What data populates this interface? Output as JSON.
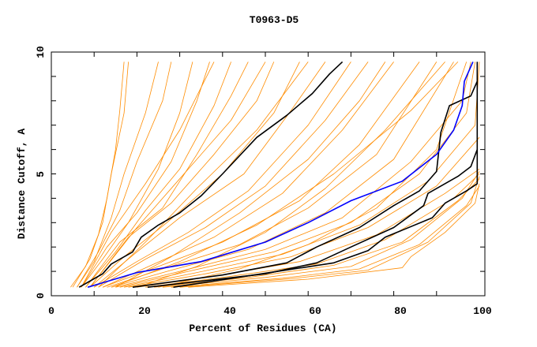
{
  "chart_data": {
    "type": "line",
    "title": "T0963-D5",
    "xlabel": "Percent of Residues (CA)",
    "ylabel": "Distance Cutoff, A",
    "xlim": [
      0,
      100
    ],
    "ylim": [
      0,
      10
    ],
    "xticks": [
      "0",
      "20",
      "40",
      "60",
      "80",
      "100"
    ],
    "yticks": [
      "0",
      "5",
      "10"
    ],
    "grid": false,
    "colors": {
      "models": "#ff8c00",
      "highlight": "#000000",
      "reference": "#0000ff"
    },
    "orange_series": [
      [
        [
          4.5,
          0.35
        ],
        [
          8,
          1.2
        ],
        [
          11,
          2.5
        ],
        [
          13,
          4
        ],
        [
          15,
          6
        ],
        [
          16,
          7.6
        ],
        [
          17,
          9.6
        ]
      ],
      [
        [
          5,
          0.35
        ],
        [
          9,
          1.5
        ],
        [
          12,
          3
        ],
        [
          14,
          5
        ],
        [
          17,
          7.5
        ],
        [
          18,
          9.6
        ]
      ],
      [
        [
          6,
          0.35
        ],
        [
          10,
          1.4
        ],
        [
          14,
          3.2
        ],
        [
          17,
          5
        ],
        [
          22,
          7.5
        ],
        [
          25,
          9.6
        ]
      ],
      [
        [
          6,
          0.35
        ],
        [
          11,
          1.8
        ],
        [
          16,
          3.5
        ],
        [
          20,
          5.5
        ],
        [
          26,
          8
        ],
        [
          28,
          9.6
        ]
      ],
      [
        [
          7,
          0.35
        ],
        [
          12,
          1.5
        ],
        [
          18,
          3
        ],
        [
          25,
          5.2
        ],
        [
          30,
          7.5
        ],
        [
          33,
          9.6
        ]
      ],
      [
        [
          7,
          0.35
        ],
        [
          13,
          2
        ],
        [
          20,
          3.4
        ],
        [
          28,
          5.5
        ],
        [
          34,
          8
        ],
        [
          37,
          9.6
        ]
      ],
      [
        [
          8,
          0.35
        ],
        [
          15,
          1.8
        ],
        [
          22,
          3.5
        ],
        [
          30,
          5.2
        ],
        [
          38,
          7.8
        ],
        [
          42,
          9.6
        ]
      ],
      [
        [
          8,
          0.35
        ],
        [
          16,
          2.2
        ],
        [
          26,
          3.6
        ],
        [
          34,
          5.8
        ],
        [
          42,
          8.2
        ],
        [
          46,
          9.6
        ]
      ],
      [
        [
          9,
          0.35
        ],
        [
          18,
          2.4
        ],
        [
          28,
          3.8
        ],
        [
          38,
          5.8
        ],
        [
          48,
          8
        ],
        [
          52,
          9.6
        ]
      ],
      [
        [
          9,
          0.35
        ],
        [
          17,
          1.6
        ],
        [
          27,
          3
        ],
        [
          40,
          5
        ],
        [
          52,
          7.5
        ],
        [
          58,
          9.6
        ]
      ],
      [
        [
          10,
          0.35
        ],
        [
          20,
          1.8
        ],
        [
          30,
          3.2
        ],
        [
          45,
          5
        ],
        [
          56,
          7.6
        ],
        [
          64,
          9.6
        ]
      ],
      [
        [
          10,
          0.35
        ],
        [
          20,
          1.4
        ],
        [
          32,
          2.6
        ],
        [
          46,
          4.3
        ],
        [
          60,
          7
        ],
        [
          70,
          9.6
        ]
      ],
      [
        [
          11,
          0.35
        ],
        [
          22,
          1.5
        ],
        [
          36,
          2.8
        ],
        [
          50,
          4.5
        ],
        [
          64,
          7.2
        ],
        [
          74,
          9.6
        ]
      ],
      [
        [
          12,
          0.35
        ],
        [
          24,
          1.3
        ],
        [
          38,
          2.4
        ],
        [
          54,
          4.2
        ],
        [
          68,
          6.8
        ],
        [
          80,
          9.6
        ]
      ],
      [
        [
          12,
          0.35
        ],
        [
          25,
          1.2
        ],
        [
          40,
          2.2
        ],
        [
          58,
          3.9
        ],
        [
          72,
          6.2
        ],
        [
          86,
          9.6
        ]
      ],
      [
        [
          13,
          0.35
        ],
        [
          26,
          1.1
        ],
        [
          44,
          2.1
        ],
        [
          60,
          3.6
        ],
        [
          76,
          5.8
        ],
        [
          90,
          9.6
        ]
      ],
      [
        [
          14,
          0.35
        ],
        [
          28,
          1.05
        ],
        [
          46,
          1.9
        ],
        [
          64,
          3.4
        ],
        [
          80,
          5.6
        ],
        [
          94,
          9.6
        ]
      ],
      [
        [
          15,
          0.35
        ],
        [
          30,
          1
        ],
        [
          50,
          1.9
        ],
        [
          68,
          3.2
        ],
        [
          84,
          5.5
        ],
        [
          96,
          8
        ],
        [
          98,
          9.6
        ]
      ],
      [
        [
          16,
          0.35
        ],
        [
          32,
          1
        ],
        [
          52,
          1.8
        ],
        [
          70,
          3
        ],
        [
          86,
          5
        ],
        [
          97,
          7.5
        ],
        [
          99,
          9.6
        ]
      ],
      [
        [
          17,
          0.35
        ],
        [
          34,
          0.95
        ],
        [
          54,
          1.7
        ],
        [
          72,
          2.9
        ],
        [
          88,
          4.7
        ],
        [
          99,
          7
        ],
        [
          100,
          9.6
        ]
      ],
      [
        [
          18,
          0.35
        ],
        [
          36,
          0.9
        ],
        [
          56,
          1.6
        ],
        [
          74,
          2.8
        ],
        [
          90,
          4.5
        ],
        [
          100,
          6.5
        ]
      ],
      [
        [
          20,
          0.35
        ],
        [
          38,
          0.8
        ],
        [
          58,
          1.4
        ],
        [
          76,
          2.5
        ],
        [
          92,
          4.2
        ],
        [
          100,
          5.2
        ]
      ],
      [
        [
          22,
          0.35
        ],
        [
          42,
          0.8
        ],
        [
          62,
          1.3
        ],
        [
          78,
          2.3
        ],
        [
          94,
          4
        ],
        [
          100,
          5
        ]
      ],
      [
        [
          24,
          0.35
        ],
        [
          46,
          0.75
        ],
        [
          66,
          1.25
        ],
        [
          82,
          2.2
        ],
        [
          95,
          3.9
        ],
        [
          100,
          4.8
        ]
      ],
      [
        [
          26,
          0.35
        ],
        [
          50,
          0.75
        ],
        [
          70,
          1.2
        ],
        [
          84,
          2.3
        ],
        [
          96,
          4
        ],
        [
          100,
          5.1
        ]
      ],
      [
        [
          28,
          0.35
        ],
        [
          54,
          0.72
        ],
        [
          72,
          1.1
        ],
        [
          86,
          2.1
        ],
        [
          97,
          3.7
        ],
        [
          100,
          4.5
        ]
      ],
      [
        [
          30,
          0.35
        ],
        [
          56,
          0.7
        ],
        [
          74,
          1.05
        ],
        [
          88,
          2.2
        ],
        [
          98,
          3.8
        ],
        [
          100,
          4.9
        ]
      ],
      [
        [
          32,
          0.35
        ],
        [
          60,
          0.68
        ],
        [
          82,
          1.15
        ],
        [
          84,
          1.6
        ],
        [
          92,
          2.6
        ],
        [
          99,
          3.8
        ],
        [
          100,
          4.6
        ]
      ],
      [
        [
          20,
          0.35
        ],
        [
          34,
          1.2
        ],
        [
          50,
          2.6
        ],
        [
          64,
          4.4
        ],
        [
          78,
          6.8
        ],
        [
          92,
          9.6
        ]
      ],
      [
        [
          15,
          0.35
        ],
        [
          28,
          1.6
        ],
        [
          44,
          3.4
        ],
        [
          60,
          5.6
        ],
        [
          72,
          8
        ],
        [
          78,
          9.6
        ]
      ],
      [
        [
          11,
          0.35
        ],
        [
          22,
          2.2
        ],
        [
          34,
          4.4
        ],
        [
          48,
          6.8
        ],
        [
          60,
          9.6
        ]
      ],
      [
        [
          9,
          0.35
        ],
        [
          20,
          2.8
        ],
        [
          30,
          4.8
        ],
        [
          42,
          7.2
        ],
        [
          50,
          9.6
        ]
      ],
      [
        [
          7,
          0.35
        ],
        [
          14,
          2.6
        ],
        [
          22,
          4.6
        ],
        [
          30,
          6.8
        ],
        [
          38,
          9.6
        ]
      ],
      [
        [
          25,
          0.35
        ],
        [
          44,
          1.1
        ],
        [
          60,
          2.1
        ],
        [
          76,
          3.6
        ],
        [
          90,
          6
        ],
        [
          97,
          9.6
        ]
      ],
      [
        [
          14,
          0.35
        ],
        [
          30,
          1.4
        ],
        [
          48,
          2.9
        ],
        [
          66,
          5
        ],
        [
          84,
          7.6
        ],
        [
          95,
          9.6
        ]
      ]
    ],
    "highlight_series": [
      [
        [
          6.5,
          0.35
        ],
        [
          9,
          0.6
        ],
        [
          12,
          0.9
        ],
        [
          14,
          1.3
        ],
        [
          19,
          1.8
        ],
        [
          21,
          2.4
        ],
        [
          25,
          2.9
        ],
        [
          30,
          3.4
        ],
        [
          35,
          4.1
        ],
        [
          40,
          5.0
        ],
        [
          48,
          6.5
        ],
        [
          55,
          7.4
        ],
        [
          61,
          8.3
        ],
        [
          65,
          9.1
        ],
        [
          68,
          9.6
        ]
      ],
      [
        [
          19,
          0.35
        ],
        [
          40,
          0.85
        ],
        [
          55,
          1.35
        ],
        [
          62,
          2.0
        ],
        [
          72,
          2.8
        ],
        [
          80,
          3.7
        ],
        [
          86,
          4.3
        ],
        [
          90,
          5.1
        ],
        [
          91,
          6.7
        ],
        [
          93,
          7.8
        ],
        [
          98,
          8.2
        ],
        [
          99.5,
          8.8
        ]
      ],
      [
        [
          22.5,
          0.35
        ],
        [
          50,
          0.9
        ],
        [
          62,
          1.35
        ],
        [
          70,
          2.0
        ],
        [
          80,
          2.8
        ],
        [
          87,
          3.7
        ],
        [
          88,
          4.2
        ],
        [
          95,
          4.9
        ],
        [
          98,
          5.3
        ],
        [
          99.5,
          6.0
        ]
      ],
      [
        [
          28.5,
          0.35
        ],
        [
          66,
          1.35
        ],
        [
          74,
          1.85
        ],
        [
          78,
          2.4
        ],
        [
          89,
          3.2
        ],
        [
          92,
          3.8
        ],
        [
          97,
          4.3
        ],
        [
          99.5,
          4.6
        ],
        [
          99.5,
          9.6
        ]
      ]
    ],
    "reference_series": [
      [
        8.5,
        0.35
      ],
      [
        20,
        0.95
      ],
      [
        35,
        1.4
      ],
      [
        50,
        2.2
      ],
      [
        60,
        3.0
      ],
      [
        70,
        3.9
      ],
      [
        82,
        4.7
      ],
      [
        90,
        5.8
      ],
      [
        94,
        6.8
      ],
      [
        96,
        7.8
      ],
      [
        96.5,
        8.8
      ],
      [
        98.5,
        9.6
      ]
    ]
  }
}
